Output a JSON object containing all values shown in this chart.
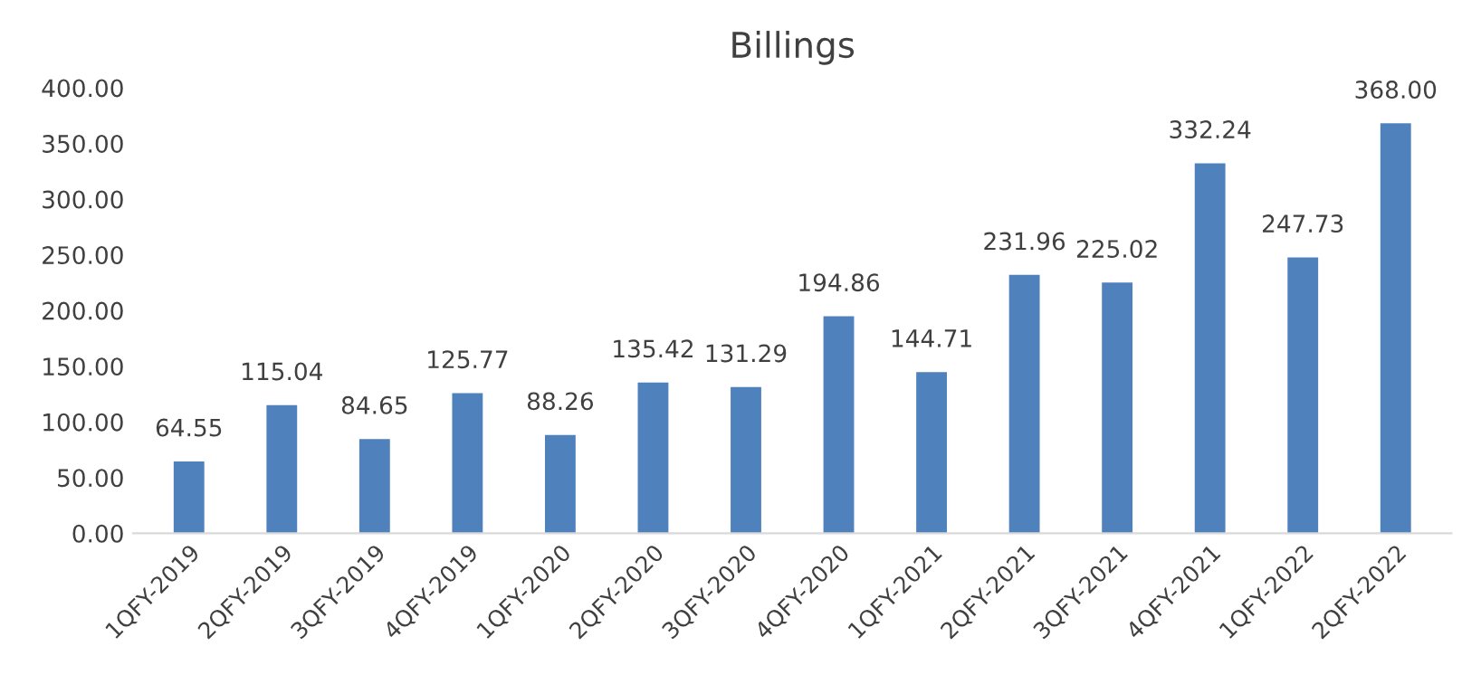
{
  "chart_data": {
    "type": "bar",
    "title": "Billings",
    "categories": [
      "1QFY-2019",
      "2QFY-2019",
      "3QFY-2019",
      "4QFY-2019",
      "1QFY-2020",
      "2QFY-2020",
      "3QFY-2020",
      "4QFY-2020",
      "1QFY-2021",
      "2QFY-2021",
      "3QFY-2021",
      "4QFY-2021",
      "1QFY-2022",
      "2QFY-2022"
    ],
    "values": [
      64.55,
      115.04,
      84.65,
      125.77,
      88.26,
      135.42,
      131.29,
      194.86,
      144.71,
      231.96,
      225.02,
      332.24,
      247.73,
      368.0
    ],
    "value_labels": [
      "64.55",
      "115.04",
      "84.65",
      "125.77",
      "88.26",
      "135.42",
      "131.29",
      "194.86",
      "144.71",
      "231.96",
      "225.02",
      "332.24",
      "247.73",
      "368.00"
    ],
    "color": "#4f81bd",
    "ylim": [
      0,
      400
    ],
    "yticks": [
      {
        "value": 0,
        "label": "0.00"
      },
      {
        "value": 50,
        "label": "50.00"
      },
      {
        "value": 100,
        "label": "100.00"
      },
      {
        "value": 150,
        "label": "150.00"
      },
      {
        "value": 200,
        "label": "200.00"
      },
      {
        "value": 250,
        "label": "250.00"
      },
      {
        "value": 300,
        "label": "300.00"
      },
      {
        "value": 350,
        "label": "350.00"
      },
      {
        "value": 400,
        "label": "400.00"
      }
    ],
    "grid": false,
    "legend": false
  }
}
